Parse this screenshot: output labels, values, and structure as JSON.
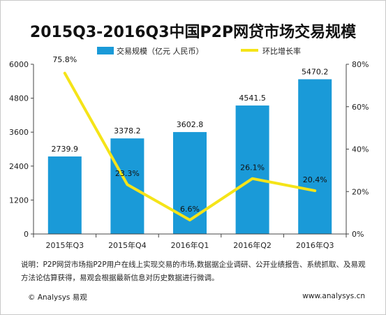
{
  "title": "2015Q3-2016Q3中国P2P网贷市场交易规模",
  "legend": {
    "bar_label": "交易规模（亿元 人民币）",
    "line_label": "环比增长率"
  },
  "colors": {
    "bar": "#1a9ad8",
    "line": "#f5e418",
    "axis": "#444444"
  },
  "chart_data": {
    "type": "bar",
    "categories": [
      "2015年Q3",
      "2015年Q4",
      "2016年Q1",
      "2016年Q2",
      "2016年Q3"
    ],
    "series": [
      {
        "name": "交易规模（亿元 人民币）",
        "type": "bar",
        "axis": "left",
        "values": [
          2739.9,
          3378.2,
          3602.8,
          4541.5,
          5470.2
        ],
        "labels": [
          "2739.9",
          "3378.2",
          "3602.8",
          "4541.5",
          "5470.2"
        ]
      },
      {
        "name": "环比增长率",
        "type": "line",
        "axis": "right",
        "values": [
          75.8,
          23.3,
          6.6,
          26.1,
          20.4
        ],
        "labels": [
          "75.8%",
          "23.3%",
          "6.6%",
          "26.1%",
          "20.4%"
        ]
      }
    ],
    "y_left": {
      "min": 0,
      "max": 6000,
      "ticks": [
        0,
        1200,
        2400,
        3600,
        4800,
        6000
      ]
    },
    "y_right": {
      "min": 0,
      "max": 80,
      "ticks": [
        "0%",
        "20%",
        "40%",
        "60%",
        "80%"
      ]
    },
    "legend_position": "top"
  },
  "note": "说明：P2P网贷市场指P2P用户在线上实现交易的市场,数据据企业调研、公开业绩报告、系统抓取、及易观方法论估算获得，易观会根据最新信息对历史数据进行微调。",
  "copyright": "© Analysys 易观",
  "website": "www.analysys.cn"
}
